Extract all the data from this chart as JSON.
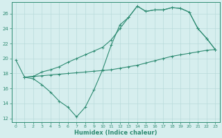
{
  "line1_x": [
    0,
    1,
    2,
    3,
    4,
    5,
    6,
    7,
    8,
    9,
    10,
    11,
    12,
    13,
    14,
    15,
    16,
    17,
    18,
    19,
    20,
    21,
    22,
    23
  ],
  "line1_y": [
    19.8,
    17.5,
    17.3,
    16.5,
    15.5,
    14.3,
    13.5,
    12.2,
    13.5,
    15.8,
    18.5,
    21.8,
    24.5,
    25.5,
    27.0,
    26.3,
    26.5,
    26.5,
    26.8,
    26.7,
    26.2,
    24.0,
    22.7,
    21.2
  ],
  "line2_x": [
    1,
    2,
    3,
    4,
    5,
    6,
    7,
    8,
    9,
    10,
    11,
    12,
    13,
    14,
    15,
    16,
    17,
    18,
    19,
    20,
    21,
    22,
    23
  ],
  "line2_y": [
    17.5,
    17.6,
    17.7,
    17.8,
    17.9,
    18.0,
    18.1,
    18.2,
    18.3,
    18.4,
    18.5,
    18.7,
    18.9,
    19.1,
    19.4,
    19.7,
    20.0,
    20.3,
    20.5,
    20.7,
    20.9,
    21.1,
    21.2
  ],
  "line3_x": [
    1,
    2,
    3,
    4,
    5,
    6,
    7,
    8,
    9,
    10,
    11,
    12,
    13,
    14,
    15,
    16,
    17,
    18,
    19,
    20,
    21,
    22,
    23
  ],
  "line3_y": [
    17.5,
    17.6,
    18.2,
    18.5,
    18.9,
    19.5,
    20.0,
    20.5,
    21.0,
    21.5,
    22.5,
    24.0,
    25.5,
    27.0,
    26.3,
    26.5,
    26.5,
    26.8,
    26.7,
    26.2,
    24.0,
    22.7,
    21.2
  ],
  "color": "#2e8b72",
  "bg_color": "#d6eeee",
  "grid_color": "#b8dada",
  "xlabel": "Humidex (Indice chaleur)",
  "ylim": [
    11.5,
    27.5
  ],
  "xlim": [
    -0.5,
    23.5
  ],
  "yticks": [
    12,
    14,
    16,
    18,
    20,
    22,
    24,
    26
  ],
  "xticks": [
    0,
    1,
    2,
    3,
    4,
    5,
    6,
    7,
    8,
    9,
    10,
    11,
    12,
    13,
    14,
    15,
    16,
    17,
    18,
    19,
    20,
    21,
    22,
    23
  ]
}
